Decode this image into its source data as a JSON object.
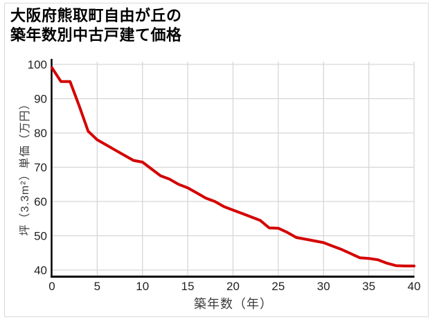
{
  "page": {
    "background": "#ffffff",
    "card_border_color": "#d9d9d9"
  },
  "title": {
    "text": "大阪府熊取町自由が丘の\n築年数別中古戸建て価格"
  },
  "chart_data": {
    "type": "line",
    "title": "大阪府熊取町自由が丘の 築年数別中古戸建て価格",
    "xlabel": "築年数（年）",
    "ylabel": "坪（3.3m²）単価（万円）",
    "xlim": [
      0,
      40
    ],
    "ylim": [
      40,
      100
    ],
    "xticks": [
      0,
      5,
      10,
      15,
      20,
      25,
      30,
      35,
      40
    ],
    "yticks": [
      40,
      50,
      60,
      70,
      80,
      90,
      100
    ],
    "grid": true,
    "legend": false,
    "series": [
      {
        "color": "#d40000",
        "x": [
          0,
          1,
          2,
          3,
          4,
          5,
          6,
          7,
          8,
          9,
          10,
          11,
          12,
          13,
          14,
          15,
          16,
          17,
          18,
          19,
          20,
          21,
          22,
          23,
          24,
          25,
          26,
          27,
          28,
          29,
          30,
          31,
          32,
          33,
          34,
          35,
          36,
          37,
          38,
          39,
          40
        ],
        "values": [
          99,
          95,
          95,
          88,
          80.5,
          78,
          76.5,
          75,
          73.5,
          72,
          71.5,
          69.5,
          67.5,
          66.5,
          65,
          64,
          62.5,
          61,
          60,
          58.5,
          57.5,
          56.5,
          55.5,
          54.5,
          52.3,
          52.2,
          51,
          49.5,
          49,
          48.5,
          48,
          47,
          46,
          44.8,
          43.6,
          43.4,
          43,
          42,
          41.3,
          41.2,
          41.2
        ]
      }
    ]
  },
  "colors": {
    "line": "#d40000",
    "grid": "#d6d6d6",
    "axis": "#000000",
    "tick_text": "#222222",
    "axis_title_text": "#3b3b3b"
  }
}
